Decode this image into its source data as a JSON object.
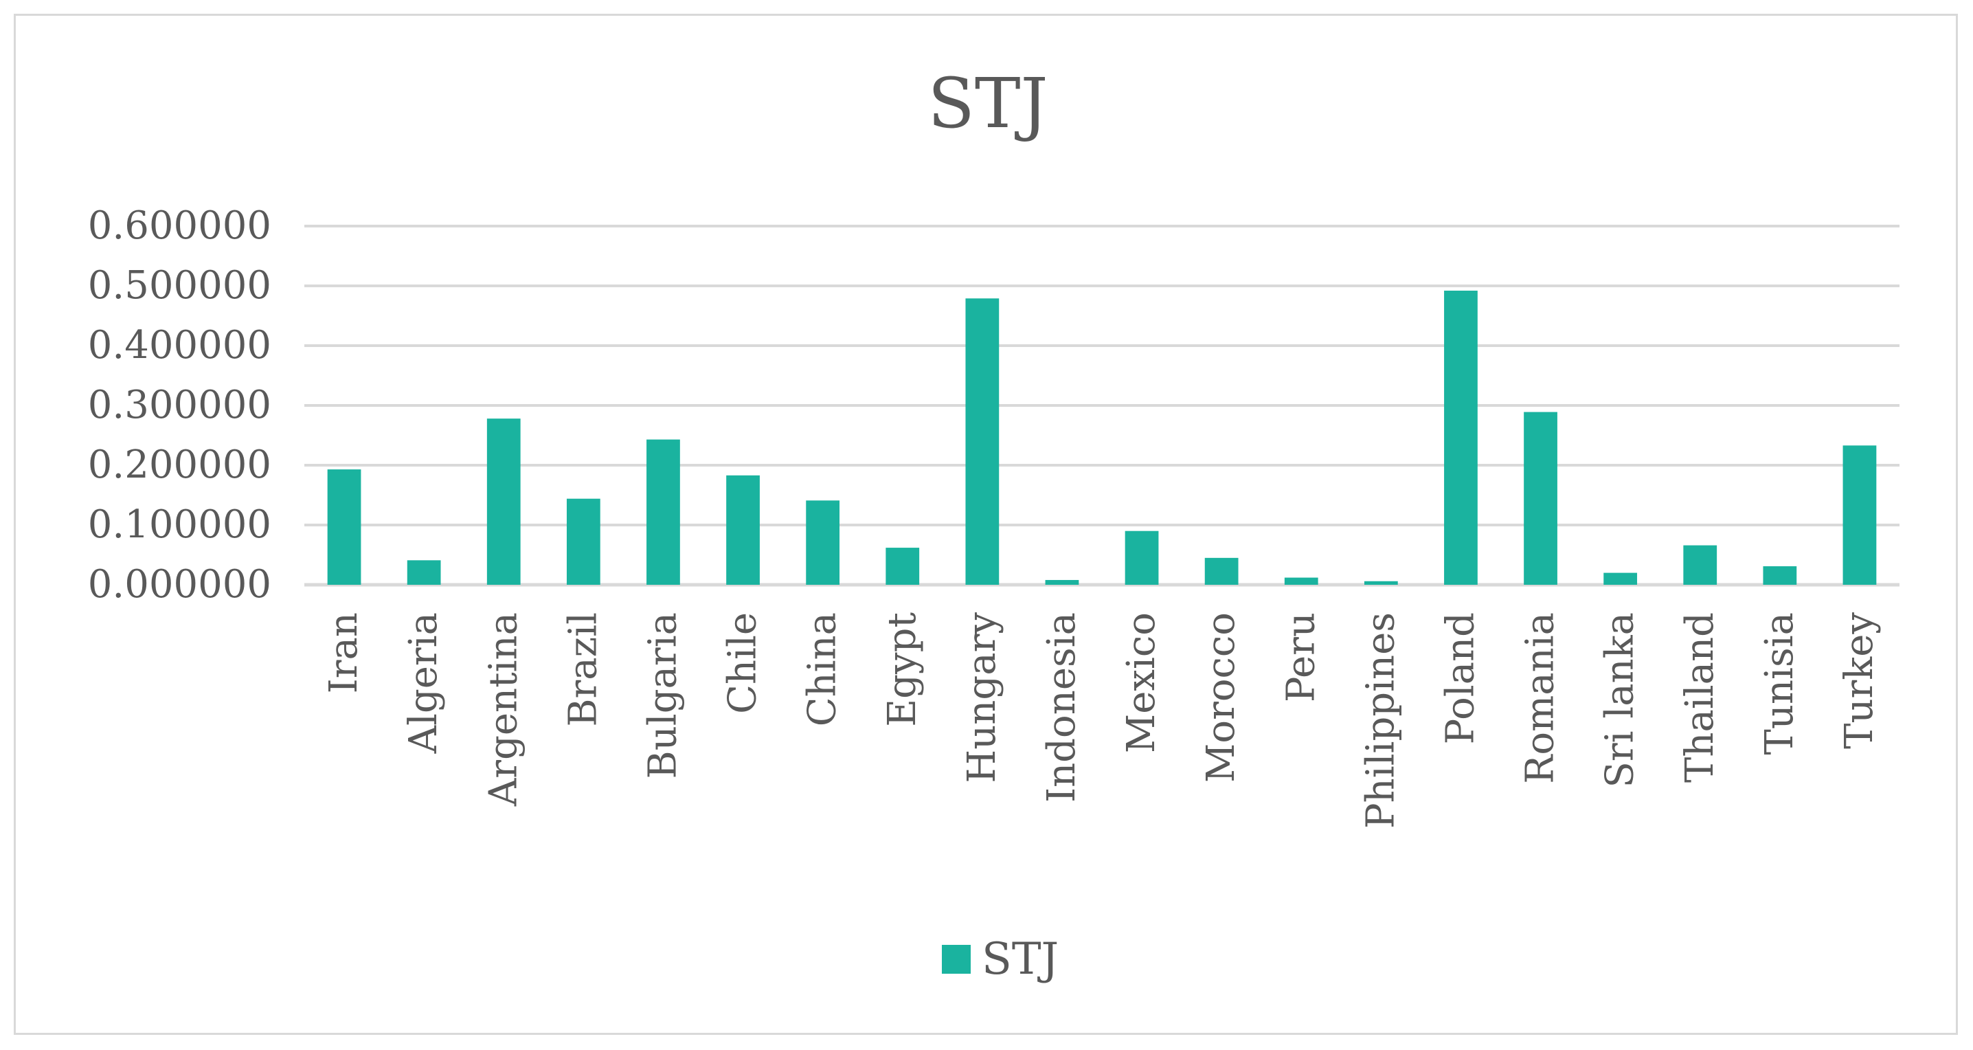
{
  "colors": {
    "series": "#1ab39f",
    "gridline": "#d9d9d9",
    "text": "#595959",
    "border": "#d9d9d9"
  },
  "chart_data": {
    "type": "bar",
    "title": "STJ",
    "xlabel": "",
    "ylabel": "",
    "ylim": [
      0,
      0.6
    ],
    "yticks": [
      "0.000000",
      "0.100000",
      "0.200000",
      "0.300000",
      "0.400000",
      "0.500000",
      "0.600000"
    ],
    "grid": true,
    "legend_position": "bottom",
    "categories": [
      "Iran",
      "Algeria",
      "Argentina",
      "Brazil",
      "Bulgaria",
      "Chile",
      "China",
      "Egypt",
      "Hungary",
      "Indonesia",
      "Mexico",
      "Morocco",
      "Peru",
      "Philippines",
      "Poland",
      "Romania",
      "Sri lanka",
      "Thailand",
      "Tunisia",
      "Turkey"
    ],
    "series": [
      {
        "name": "STJ",
        "values": [
          0.193,
          0.041,
          0.278,
          0.144,
          0.243,
          0.183,
          0.141,
          0.062,
          0.479,
          0.008,
          0.09,
          0.045,
          0.012,
          0.006,
          0.492,
          0.289,
          0.02,
          0.066,
          0.031,
          0.233
        ]
      }
    ]
  }
}
